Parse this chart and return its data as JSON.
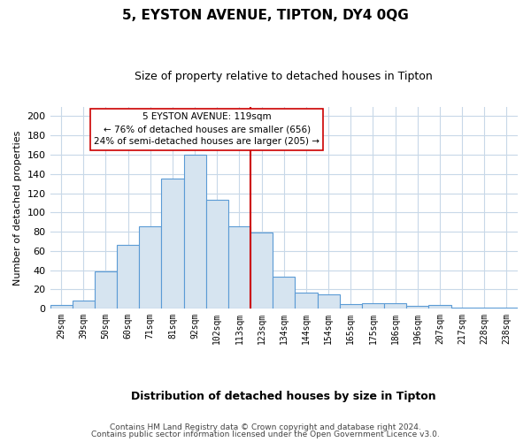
{
  "title": "5, EYSTON AVENUE, TIPTON, DY4 0QG",
  "subtitle": "Size of property relative to detached houses in Tipton",
  "xlabel": "Distribution of detached houses by size in Tipton",
  "ylabel": "Number of detached properties",
  "bar_labels": [
    "29sqm",
    "39sqm",
    "50sqm",
    "60sqm",
    "71sqm",
    "81sqm",
    "92sqm",
    "102sqm",
    "113sqm",
    "123sqm",
    "134sqm",
    "144sqm",
    "154sqm",
    "165sqm",
    "175sqm",
    "186sqm",
    "196sqm",
    "207sqm",
    "217sqm",
    "228sqm",
    "238sqm"
  ],
  "bar_values": [
    4,
    8,
    39,
    66,
    86,
    135,
    160,
    113,
    86,
    79,
    33,
    17,
    15,
    5,
    6,
    6,
    3,
    4,
    1,
    1,
    1
  ],
  "bar_color": "#d6e4f0",
  "bar_edge_color": "#5b9bd5",
  "vline_color": "#cc0000",
  "ylim": [
    0,
    210
  ],
  "yticks": [
    0,
    20,
    40,
    60,
    80,
    100,
    120,
    140,
    160,
    180,
    200
  ],
  "annotation_title": "5 EYSTON AVENUE: 119sqm",
  "annotation_line1": "← 76% of detached houses are smaller (656)",
  "annotation_line2": "24% of semi-detached houses are larger (205) →",
  "annotation_box_color": "#ffffff",
  "annotation_box_edge": "#cc0000",
  "footer1": "Contains HM Land Registry data © Crown copyright and database right 2024.",
  "footer2": "Contains public sector information licensed under the Open Government Licence v3.0.",
  "background_color": "#ffffff",
  "plot_background": "#ffffff",
  "grid_color": "#c8d8e8"
}
